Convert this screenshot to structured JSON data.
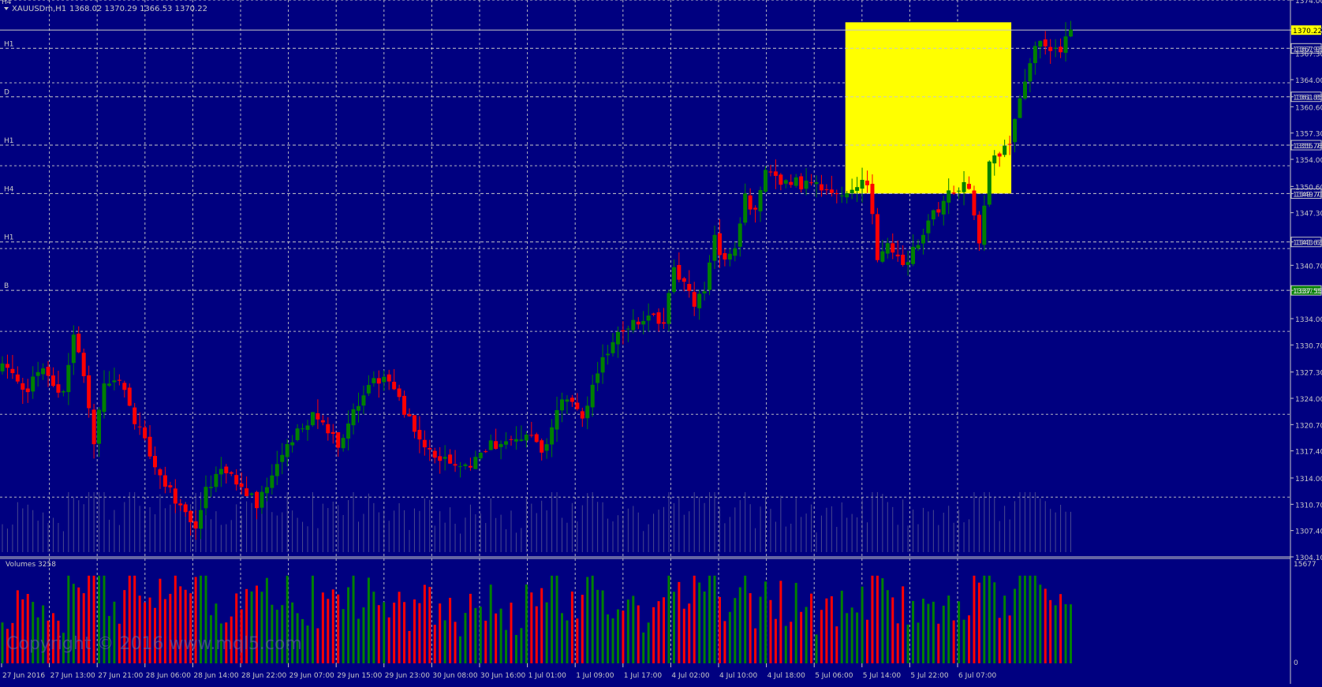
{
  "header": {
    "symbol_label": "XAUUSDm,H1",
    "ohlc": "1368.02 1370.29 1366.53 1370.22",
    "corner_tf": "H4"
  },
  "colors": {
    "background": "#000080",
    "grid": "#C8C8C8",
    "bull": "#008000",
    "bear": "#FF0000",
    "highlight_box": "#FFFF00",
    "current_price_tag": "#FFFF00",
    "level_B_tag": "#008000"
  },
  "levels": [
    {
      "label": "H1",
      "price": 1367.93
    },
    {
      "label": "D",
      "price": 1361.85
    },
    {
      "label": "H1",
      "price": 1355.78
    },
    {
      "label": "H4",
      "price": 1349.7
    },
    {
      "label": "H1",
      "price": 1343.63
    },
    {
      "label": "B",
      "price": 1337.55
    }
  ],
  "highlight_box": {
    "price_top": 1371.2,
    "price_bottom": 1349.7,
    "from_bar": 166,
    "to_bar": 198
  },
  "price_axis": {
    "ticks": [
      "1374.00",
      "1370.22",
      "1367.93",
      "1367.30",
      "1364.00",
      "1361.85",
      "1360.60",
      "1357.30",
      "1355.78",
      "1354.00",
      "1350.60",
      "1349.70",
      "1347.30",
      "1343.63",
      "1340.70",
      "1337.55",
      "1334.00",
      "1330.70",
      "1327.30",
      "1324.00",
      "1320.70",
      "1317.40",
      "1314.00",
      "1310.70",
      "1307.40",
      "1304.10"
    ],
    "current_price": "1370.22"
  },
  "volume_panel": {
    "label": "Volumes 3258",
    "max_tick": "15677",
    "min_tick": "0"
  },
  "watermark": "Copyright © 2016 www.mql5.com",
  "time_axis": [
    "27 Jun 2016",
    "27 Jun 13:00",
    "27 Jun 21:00",
    "28 Jun 06:00",
    "28 Jun 14:00",
    "28 Jun 22:00",
    "29 Jun 07:00",
    "29 Jun 15:00",
    "29 Jun 23:00",
    "30 Jun 08:00",
    "30 Jun 16:00",
    "1 Jul 01:00",
    "1 Jul 09:00",
    "1 Jul 17:00",
    "4 Jul 02:00",
    "4 Jul 10:00",
    "4 Jul 18:00",
    "5 Jul 06:00",
    "5 Jul 14:00",
    "5 Jul 22:00",
    "6 Jul 07:00"
  ],
  "chart_data": {
    "type": "candlestick",
    "symbol": "XAUUSDm",
    "timeframe": "H1",
    "ylim": [
      1304.1,
      1374.0
    ],
    "anchors": [
      [
        0,
        1328
      ],
      [
        4,
        1325
      ],
      [
        8,
        1327
      ],
      [
        12,
        1325
      ],
      [
        14,
        1332
      ],
      [
        16,
        1326
      ],
      [
        18,
        1318
      ],
      [
        20,
        1326
      ],
      [
        22,
        1326
      ],
      [
        24,
        1325
      ],
      [
        26,
        1321
      ],
      [
        30,
        1316
      ],
      [
        34,
        1311
      ],
      [
        38,
        1308
      ],
      [
        40,
        1313
      ],
      [
        44,
        1315
      ],
      [
        50,
        1311
      ],
      [
        54,
        1316
      ],
      [
        58,
        1320
      ],
      [
        62,
        1322
      ],
      [
        66,
        1318
      ],
      [
        72,
        1326
      ],
      [
        76,
        1326
      ],
      [
        80,
        1321
      ],
      [
        84,
        1317
      ],
      [
        88,
        1316
      ],
      [
        92,
        1316
      ],
      [
        96,
        1318
      ],
      [
        100,
        1318
      ],
      [
        104,
        1320
      ],
      [
        106,
        1317
      ],
      [
        110,
        1324
      ],
      [
        114,
        1322
      ],
      [
        118,
        1329
      ],
      [
        122,
        1333
      ],
      [
        126,
        1334
      ],
      [
        130,
        1334
      ],
      [
        132,
        1340
      ],
      [
        136,
        1336
      ],
      [
        138,
        1337
      ],
      [
        140,
        1344
      ],
      [
        142,
        1341
      ],
      [
        144,
        1343
      ],
      [
        146,
        1349
      ],
      [
        148,
        1348
      ],
      [
        150,
        1352
      ],
      [
        154,
        1351
      ],
      [
        158,
        1351
      ],
      [
        162,
        1350
      ],
      [
        166,
        1350
      ],
      [
        170,
        1351
      ],
      [
        172,
        1342
      ],
      [
        174,
        1343
      ],
      [
        178,
        1341
      ],
      [
        182,
        1346
      ],
      [
        186,
        1350
      ],
      [
        190,
        1351
      ],
      [
        192,
        1344
      ],
      [
        194,
        1353
      ],
      [
        196,
        1355
      ],
      [
        198,
        1356
      ],
      [
        200,
        1362
      ],
      [
        202,
        1366
      ],
      [
        204,
        1369
      ],
      [
        206,
        1367
      ],
      [
        208,
        1368
      ],
      [
        210,
        1370
      ]
    ],
    "volume_max": 15677
  }
}
